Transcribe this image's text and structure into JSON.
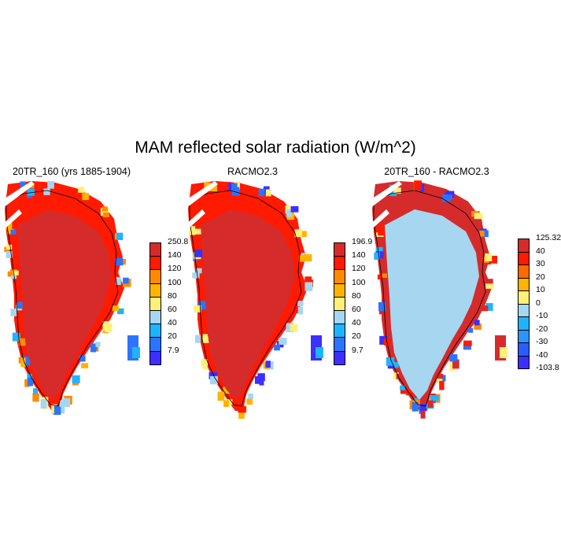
{
  "title": "MAM reflected solar radiation (W/m^2)",
  "colors": {
    "dark_red": "#d62b2b",
    "red": "#ff1a00",
    "orange": "#ff8a00",
    "amber": "#ffb400",
    "yellow": "#fff07a",
    "light_blue": "#a6d6f0",
    "sky": "#1fb4ff",
    "blue": "#2c74ff",
    "indigo": "#3b30ff",
    "coastline": "#000000"
  },
  "panels": [
    {
      "title": "20TR_160 (yrs 1885-1904)",
      "interior_color": "dark_red",
      "colorbar": {
        "labels": [
          "250.8",
          "140",
          "120",
          "100",
          "80",
          "60",
          "40",
          "20",
          "7.9"
        ],
        "colors": [
          "#d62b2b",
          "#ff1a00",
          "#ff8a00",
          "#ffb400",
          "#fff07a",
          "#a6d6f0",
          "#1fb4ff",
          "#2c74ff",
          "#3b30ff"
        ]
      }
    },
    {
      "title": "RACMO2.3",
      "interior_color": "dark_red",
      "colorbar": {
        "labels": [
          "196.9",
          "140",
          "120",
          "100",
          "80",
          "60",
          "40",
          "20",
          "9.7"
        ],
        "colors": [
          "#d62b2b",
          "#ff1a00",
          "#ff8a00",
          "#ffb400",
          "#fff07a",
          "#a6d6f0",
          "#1fb4ff",
          "#2c74ff",
          "#3b30ff"
        ]
      }
    },
    {
      "title": "20TR_160 - RACMO2.3",
      "interior_color": "light_blue",
      "colorbar": {
        "labels": [
          "125.32",
          "40",
          "30",
          "20",
          "10",
          "0",
          "-10",
          "-20",
          "-30",
          "-40",
          "-103.8"
        ],
        "colors": [
          "#d62b2b",
          "#ff1a00",
          "#ff6a00",
          "#ffb400",
          "#fff07a",
          "#a6d6f0",
          "#1fb4ff",
          "#2c94ff",
          "#2c5cff",
          "#3b30ff"
        ]
      }
    }
  ]
}
